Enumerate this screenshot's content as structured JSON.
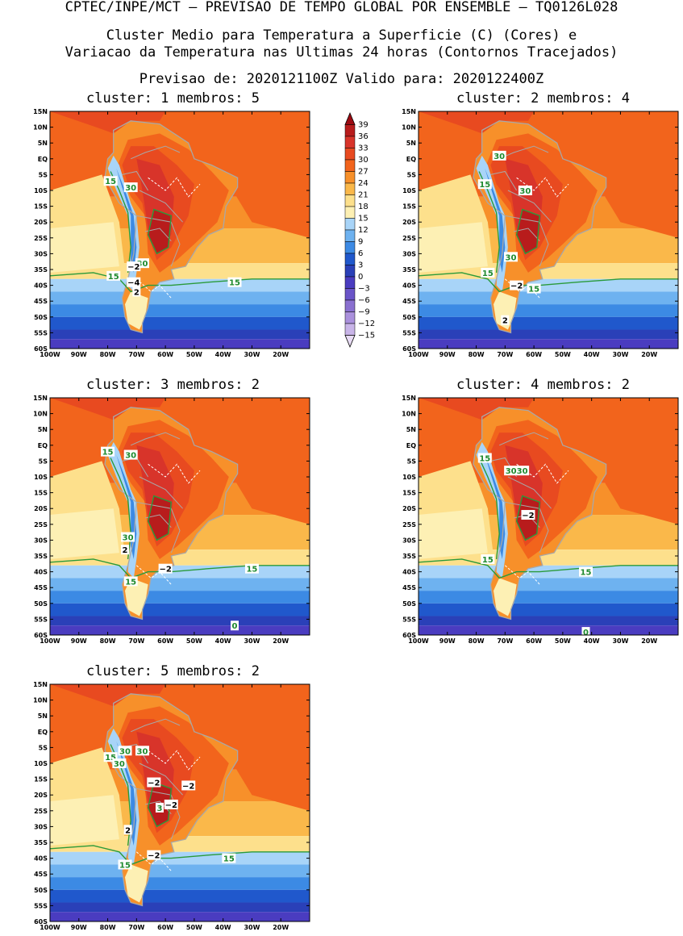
{
  "header": {
    "line1": "CPTEC/INPE/MCT – PREVISAO DE TEMPO GLOBAL POR ENSEMBLE – TQ0126L028",
    "line2": "Cluster Medio para Temperatura a Superficie (C) (Cores) e",
    "line3": "Variacao da Temperatura nas Ultimas 24 horas (Contornos Tracejados)",
    "line4": "Previsao de: 2020121100Z   Valido para: 2020122400Z"
  },
  "axes": {
    "lat_labels": [
      "15N",
      "10N",
      "5N",
      "EQ",
      "5S",
      "10S",
      "15S",
      "20S",
      "25S",
      "30S",
      "35S",
      "40S",
      "45S",
      "50S",
      "55S",
      "60S"
    ],
    "lon_labels": [
      "100W",
      "90W",
      "80W",
      "70W",
      "60W",
      "50W",
      "40W",
      "30W",
      "20W"
    ]
  },
  "colorbar": {
    "levels": [
      "39",
      "36",
      "33",
      "30",
      "27",
      "24",
      "21",
      "18",
      "15",
      "12",
      "9",
      "6",
      "3",
      "0",
      "−3",
      "−6",
      "−9",
      "−12",
      "−15"
    ],
    "colors": [
      "#9c0a12",
      "#b81c1c",
      "#d8342a",
      "#e84a20",
      "#f2641c",
      "#f7902a",
      "#fab84a",
      "#fde08c",
      "#fdf0b4",
      "#a8d4f8",
      "#6eb2f0",
      "#3c8ae4",
      "#2058cc",
      "#2a40b8",
      "#4a3cc0",
      "#6a54c8",
      "#8a70d0",
      "#aa90dc",
      "#c8b4e8",
      "#e8dcf4"
    ]
  },
  "panels": [
    {
      "title": "cluster: 1   membros: 5",
      "labels": [
        {
          "text": "15",
          "type": "temp"
        },
        {
          "text": "30",
          "type": "temp"
        },
        {
          "text": "15",
          "type": "temp"
        },
        {
          "text": "30",
          "type": "temp"
        },
        {
          "text": "−2",
          "type": "var"
        },
        {
          "text": "−4",
          "type": "var"
        },
        {
          "text": "2",
          "type": "var"
        },
        {
          "text": "15",
          "type": "temp"
        }
      ]
    },
    {
      "title": "cluster: 2   membros: 4",
      "labels": [
        {
          "text": "30",
          "type": "temp"
        },
        {
          "text": "15",
          "type": "temp"
        },
        {
          "text": "30",
          "type": "temp"
        },
        {
          "text": "30",
          "type": "temp"
        },
        {
          "text": "15",
          "type": "temp"
        },
        {
          "text": "−2",
          "type": "var"
        },
        {
          "text": "15",
          "type": "temp"
        },
        {
          "text": "2",
          "type": "var"
        }
      ]
    },
    {
      "title": "cluster: 3   membros: 2",
      "labels": [
        {
          "text": "30",
          "type": "temp"
        },
        {
          "text": "15",
          "type": "temp"
        },
        {
          "text": "30",
          "type": "temp"
        },
        {
          "text": "2",
          "type": "var"
        },
        {
          "text": "−2",
          "type": "var"
        },
        {
          "text": "15",
          "type": "temp"
        },
        {
          "text": "15",
          "type": "temp"
        },
        {
          "text": "0",
          "type": "temp"
        }
      ]
    },
    {
      "title": "cluster: 4   membros: 2",
      "labels": [
        {
          "text": "15",
          "type": "temp"
        },
        {
          "text": "3030",
          "type": "temp"
        },
        {
          "text": "−2",
          "type": "var"
        },
        {
          "text": "15",
          "type": "temp"
        },
        {
          "text": "15",
          "type": "temp"
        },
        {
          "text": "0",
          "type": "temp"
        }
      ]
    },
    {
      "title": "cluster: 5   membros: 2",
      "labels": [
        {
          "text": "30",
          "type": "temp"
        },
        {
          "text": "30",
          "type": "temp"
        },
        {
          "text": "15",
          "type": "temp"
        },
        {
          "text": "30",
          "type": "temp"
        },
        {
          "text": "−2",
          "type": "var"
        },
        {
          "text": "−2",
          "type": "var"
        },
        {
          "text": "−2",
          "type": "var"
        },
        {
          "text": "3",
          "type": "temp"
        },
        {
          "text": "2",
          "type": "var"
        },
        {
          "text": "−2",
          "type": "var"
        },
        {
          "text": "15",
          "type": "temp"
        },
        {
          "text": "15",
          "type": "temp"
        }
      ]
    }
  ]
}
